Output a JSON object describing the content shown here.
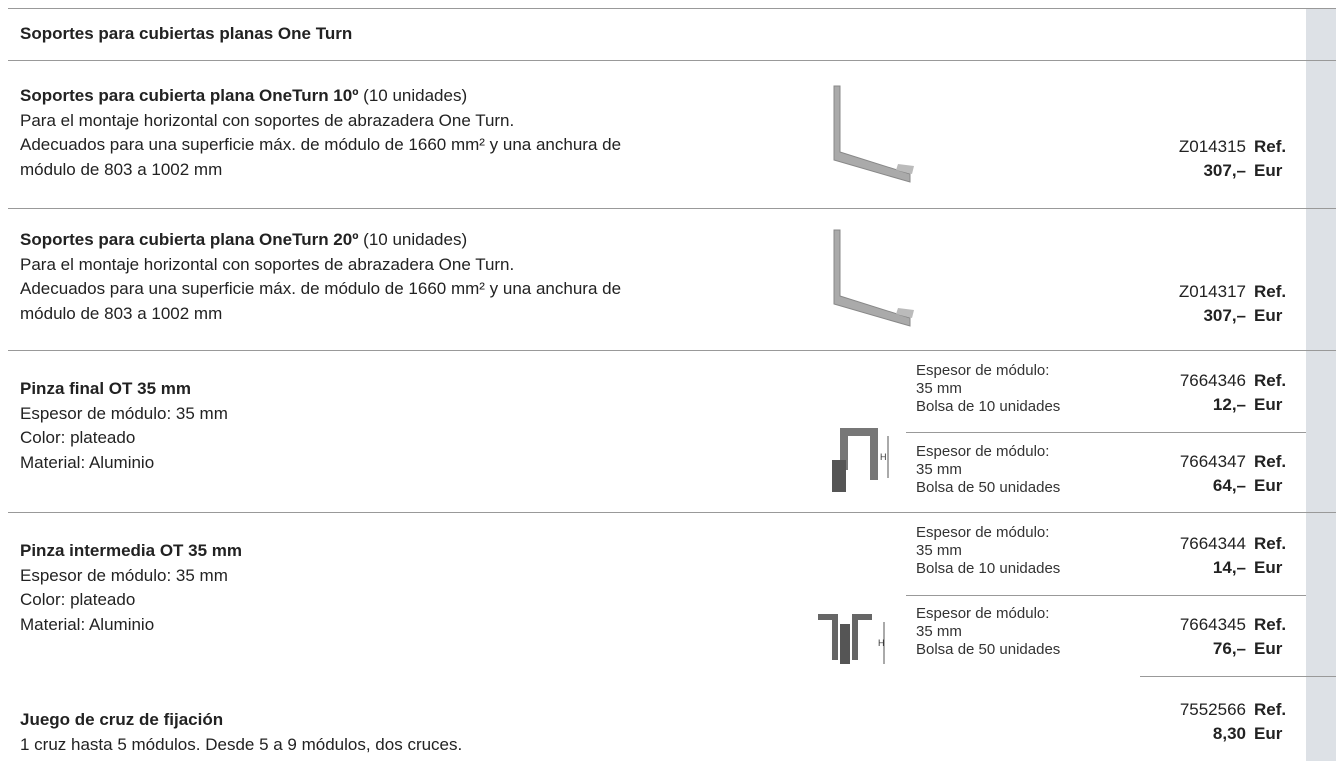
{
  "header": {
    "title": "Soportes para cubiertas planas One Turn"
  },
  "items": [
    {
      "title": "Soportes para cubierta plana OneTurn 10º",
      "title_note": "(10 unidades)",
      "lines": [
        "Para el montaje horizontal con soportes de abrazadera One Turn.",
        "Adecuados para una superficie máx. de módulo de 1660 mm² y una anchura de",
        "módulo de 803 a 1002 mm"
      ],
      "variants": [
        {
          "ref": "Z014315",
          "ref_label": "Ref.",
          "price": "307,–",
          "price_label": "Eur"
        }
      ]
    },
    {
      "title": "Soportes para cubierta plana OneTurn 20º",
      "title_note": "(10 unidades)",
      "lines": [
        "Para el montaje horizontal con soportes de abrazadera One Turn.",
        "Adecuados para una superficie máx. de módulo de 1660 mm² y una anchura de",
        "módulo de 803 a 1002 mm"
      ],
      "variants": [
        {
          "ref": "Z014317",
          "ref_label": "Ref.",
          "price": "307,–",
          "price_label": "Eur"
        }
      ]
    },
    {
      "title": "Pinza final OT 35 mm",
      "lines": [
        "Espesor de módulo: 35 mm",
        "Color: plateado",
        "Material: Aluminio"
      ],
      "variants": [
        {
          "desc": [
            "Espesor de módulo:",
            "35 mm",
            "Bolsa de 10 unidades"
          ],
          "ref": "7664346",
          "ref_label": "Ref.",
          "price": "12,–",
          "price_label": "Eur"
        },
        {
          "desc": [
            "Espesor de módulo:",
            "35 mm",
            "Bolsa de 50 unidades"
          ],
          "ref": "7664347",
          "ref_label": "Ref.",
          "price": "64,–",
          "price_label": "Eur"
        }
      ]
    },
    {
      "title": "Pinza intermedia OT 35 mm",
      "lines": [
        "Espesor de módulo: 35 mm",
        "Color: plateado",
        "Material: Aluminio"
      ],
      "variants": [
        {
          "desc": [
            "Espesor de módulo:",
            "35 mm",
            "Bolsa de 10 unidades"
          ],
          "ref": "7664344",
          "ref_label": "Ref.",
          "price": "14,–",
          "price_label": "Eur"
        },
        {
          "desc": [
            "Espesor de módulo:",
            "35 mm",
            "Bolsa de 50 unidades"
          ],
          "ref": "7664345",
          "ref_label": "Ref.",
          "price": "76,–",
          "price_label": "Eur"
        }
      ]
    },
    {
      "title": "Juego de cruz de fijación",
      "lines": [
        "1 cruz hasta 5 módulos. Desde 5 a 9 módulos, dos cruces."
      ],
      "variants": [
        {
          "ref": "7552566",
          "ref_label": "Ref.",
          "price": "8,30",
          "price_label": "Eur"
        }
      ]
    }
  ]
}
